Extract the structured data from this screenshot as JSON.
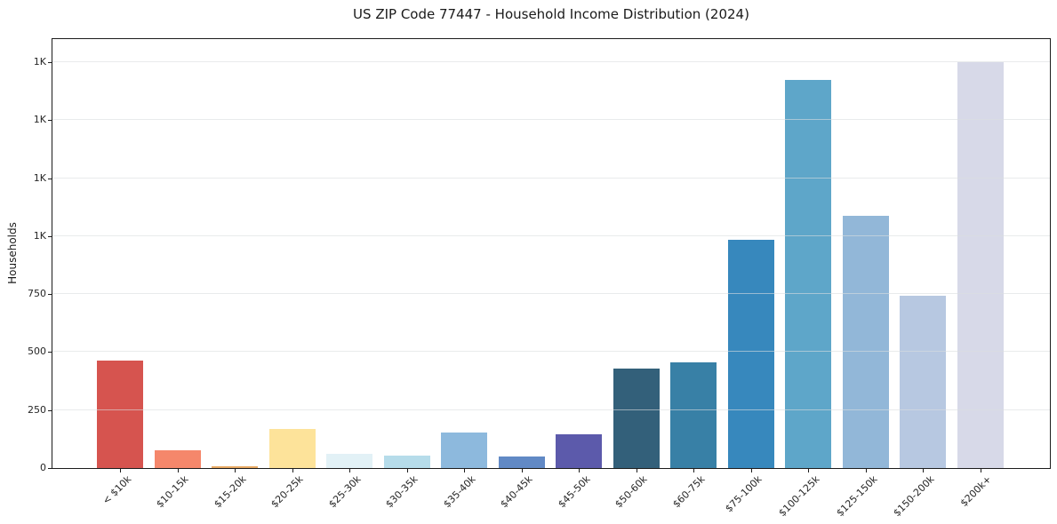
{
  "title": "US ZIP Code 77447 - Household Income Distribution (2024)",
  "chart_data": {
    "type": "bar",
    "title": "US ZIP Code 77447 - Household Income Distribution (2024)",
    "xlabel": "",
    "ylabel": "Households",
    "categories": [
      "< $10k",
      "$10-15k",
      "$15-20k",
      "$20-25k",
      "$25-30k",
      "$30-35k",
      "$35-40k",
      "$40-45k",
      "$45-50k",
      "$50-60k",
      "$60-75k",
      "$75-100k",
      "$100-125k",
      "$125-150k",
      "$150-200k",
      "$200k+"
    ],
    "values": [
      465,
      75,
      8,
      167,
      63,
      52,
      155,
      48,
      145,
      428,
      455,
      983,
      1674,
      1089,
      744,
      1750
    ],
    "bar_colors": [
      "#d6544f",
      "#f5876b",
      "#e8a963",
      "#fde39a",
      "#e2f1f6",
      "#b6dcea",
      "#8db9dd",
      "#6189c5",
      "#5c5aab",
      "#33607a",
      "#3880a6",
      "#3788bd",
      "#5ea6c9",
      "#92b7d8",
      "#b7c8e1",
      "#d7d9e8"
    ],
    "ylim": [
      0,
      1850
    ],
    "yticks": [
      {
        "value": 0,
        "label": "0"
      },
      {
        "value": 250,
        "label": "250"
      },
      {
        "value": 500,
        "label": "500"
      },
      {
        "value": 750,
        "label": "750"
      },
      {
        "value": 1000,
        "label": "1K"
      },
      {
        "value": 1250,
        "label": "1K"
      },
      {
        "value": 1500,
        "label": "1K"
      },
      {
        "value": 1750,
        "label": "1K"
      }
    ],
    "grid": "horizontal",
    "legend": "none",
    "background_color": "#ffffff",
    "frame_color": "#1c1c1c"
  }
}
